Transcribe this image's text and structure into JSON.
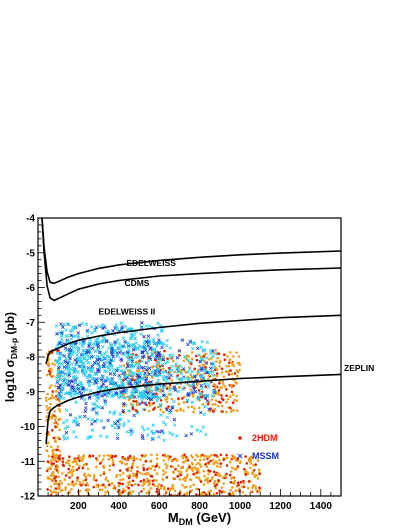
{
  "chart_data": {
    "type": "scatter",
    "xlabel_main": "M",
    "xlabel_sub": "DM",
    "xlabel_unit": " (GeV)",
    "ylabel_main": "log10 σ",
    "ylabel_sub": "DM-p",
    "ylabel_unit": " (pb)",
    "xlim": [
      0,
      1500
    ],
    "ylim": [
      -12,
      -4
    ],
    "x_ticks": [
      200,
      400,
      600,
      800,
      1000,
      1200,
      1400
    ],
    "y_ticks": [
      -12,
      -11,
      -10,
      -9,
      -8,
      -7,
      -6,
      -5,
      -4
    ],
    "grid": false,
    "legend_position": "bottom-right",
    "exclusion_curves": [
      {
        "name": "EDELWEISS",
        "x": [
          20,
          30,
          45,
          60,
          80,
          100,
          150,
          200,
          300,
          400,
          600,
          800,
          1000,
          1200,
          1500
        ],
        "y": [
          -4.0,
          -4.85,
          -5.55,
          -5.85,
          -5.88,
          -5.83,
          -5.7,
          -5.6,
          -5.45,
          -5.35,
          -5.22,
          -5.13,
          -5.06,
          -5.01,
          -4.95
        ]
      },
      {
        "name": "CDMS",
        "x": [
          20,
          30,
          45,
          60,
          80,
          100,
          150,
          200,
          300,
          400,
          600,
          800,
          1000,
          1200,
          1500
        ],
        "y": [
          -4.0,
          -5.0,
          -5.95,
          -6.3,
          -6.37,
          -6.32,
          -6.18,
          -6.05,
          -5.9,
          -5.8,
          -5.67,
          -5.6,
          -5.54,
          -5.49,
          -5.44
        ]
      },
      {
        "name": "EDELWEISS II",
        "x": [
          40,
          50,
          60,
          80,
          100,
          150,
          200,
          300,
          400,
          600,
          800,
          1000,
          1200,
          1500
        ],
        "y": [
          -8.2,
          -7.95,
          -7.85,
          -7.8,
          -7.75,
          -7.62,
          -7.52,
          -7.4,
          -7.3,
          -7.15,
          -7.03,
          -6.95,
          -6.87,
          -6.8
        ]
      },
      {
        "name": "ZEPLIN",
        "x": [
          40,
          50,
          60,
          80,
          100,
          150,
          200,
          300,
          400,
          600,
          800,
          1000,
          1200,
          1500
        ],
        "y": [
          -10.5,
          -9.8,
          -9.55,
          -9.45,
          -9.38,
          -9.25,
          -9.15,
          -9.0,
          -8.9,
          -8.78,
          -8.7,
          -8.62,
          -8.57,
          -8.5
        ]
      }
    ],
    "curve_labels": [
      {
        "name": "EDELWEISS",
        "x": 560,
        "y": -5.38
      },
      {
        "name": "CDMS",
        "x": 490,
        "y": -5.95
      },
      {
        "name": "EDELWEISS II",
        "x": 440,
        "y": -6.78
      },
      {
        "name": "ZEPLIN",
        "x": 1530,
        "y": -8.4
      }
    ],
    "series": [
      {
        "name": "2HDM",
        "marker": "dot",
        "color": "#dd2200",
        "secondary_color": "#f0a020",
        "regions": [
          {
            "x": [
              420,
              1000
            ],
            "y": [
              -9.6,
              -7.8
            ],
            "count": 420
          },
          {
            "x": [
              60,
              1100
            ],
            "y": [
              -12,
              -10.8
            ],
            "count": 650
          },
          {
            "x": [
              40,
              110
            ],
            "y": [
              -12,
              -7.8
            ],
            "count": 160
          }
        ]
      },
      {
        "name": "MSSM",
        "marker": "cross",
        "color": "#1a33cc",
        "secondary_color": "#22ccee",
        "regions": [
          {
            "x": [
              90,
              620
            ],
            "y": [
              -9.2,
              -7.0
            ],
            "count": 520
          },
          {
            "x": [
              100,
              880
            ],
            "y": [
              -9.2,
              -7.5
            ],
            "count": 380
          },
          {
            "x": [
              120,
              850
            ],
            "y": [
              -10.4,
              -8.6
            ],
            "count": 200
          }
        ]
      }
    ]
  }
}
